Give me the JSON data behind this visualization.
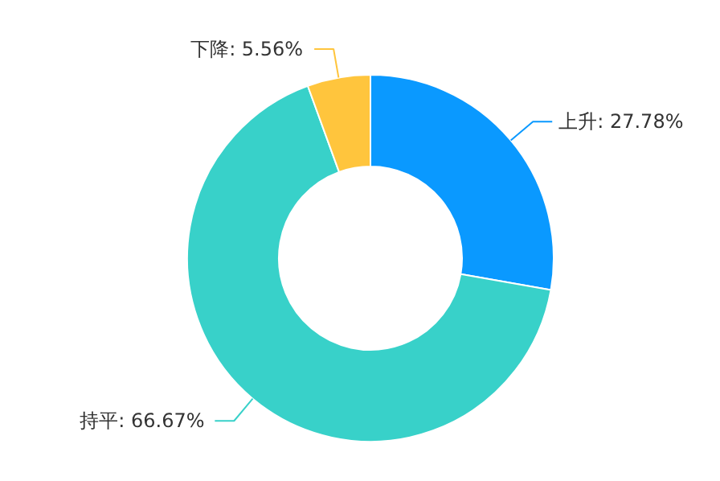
{
  "chart_data": {
    "type": "donut",
    "categories": [
      "上升",
      "持平",
      "下降"
    ],
    "values": [
      27.78,
      66.67,
      5.56
    ],
    "value_labels": [
      ": 27.78%",
      ": 66.67%",
      ": 5.56%"
    ],
    "colors": [
      "#0a99ff",
      "#38d1c9",
      "#ffc53d"
    ]
  }
}
